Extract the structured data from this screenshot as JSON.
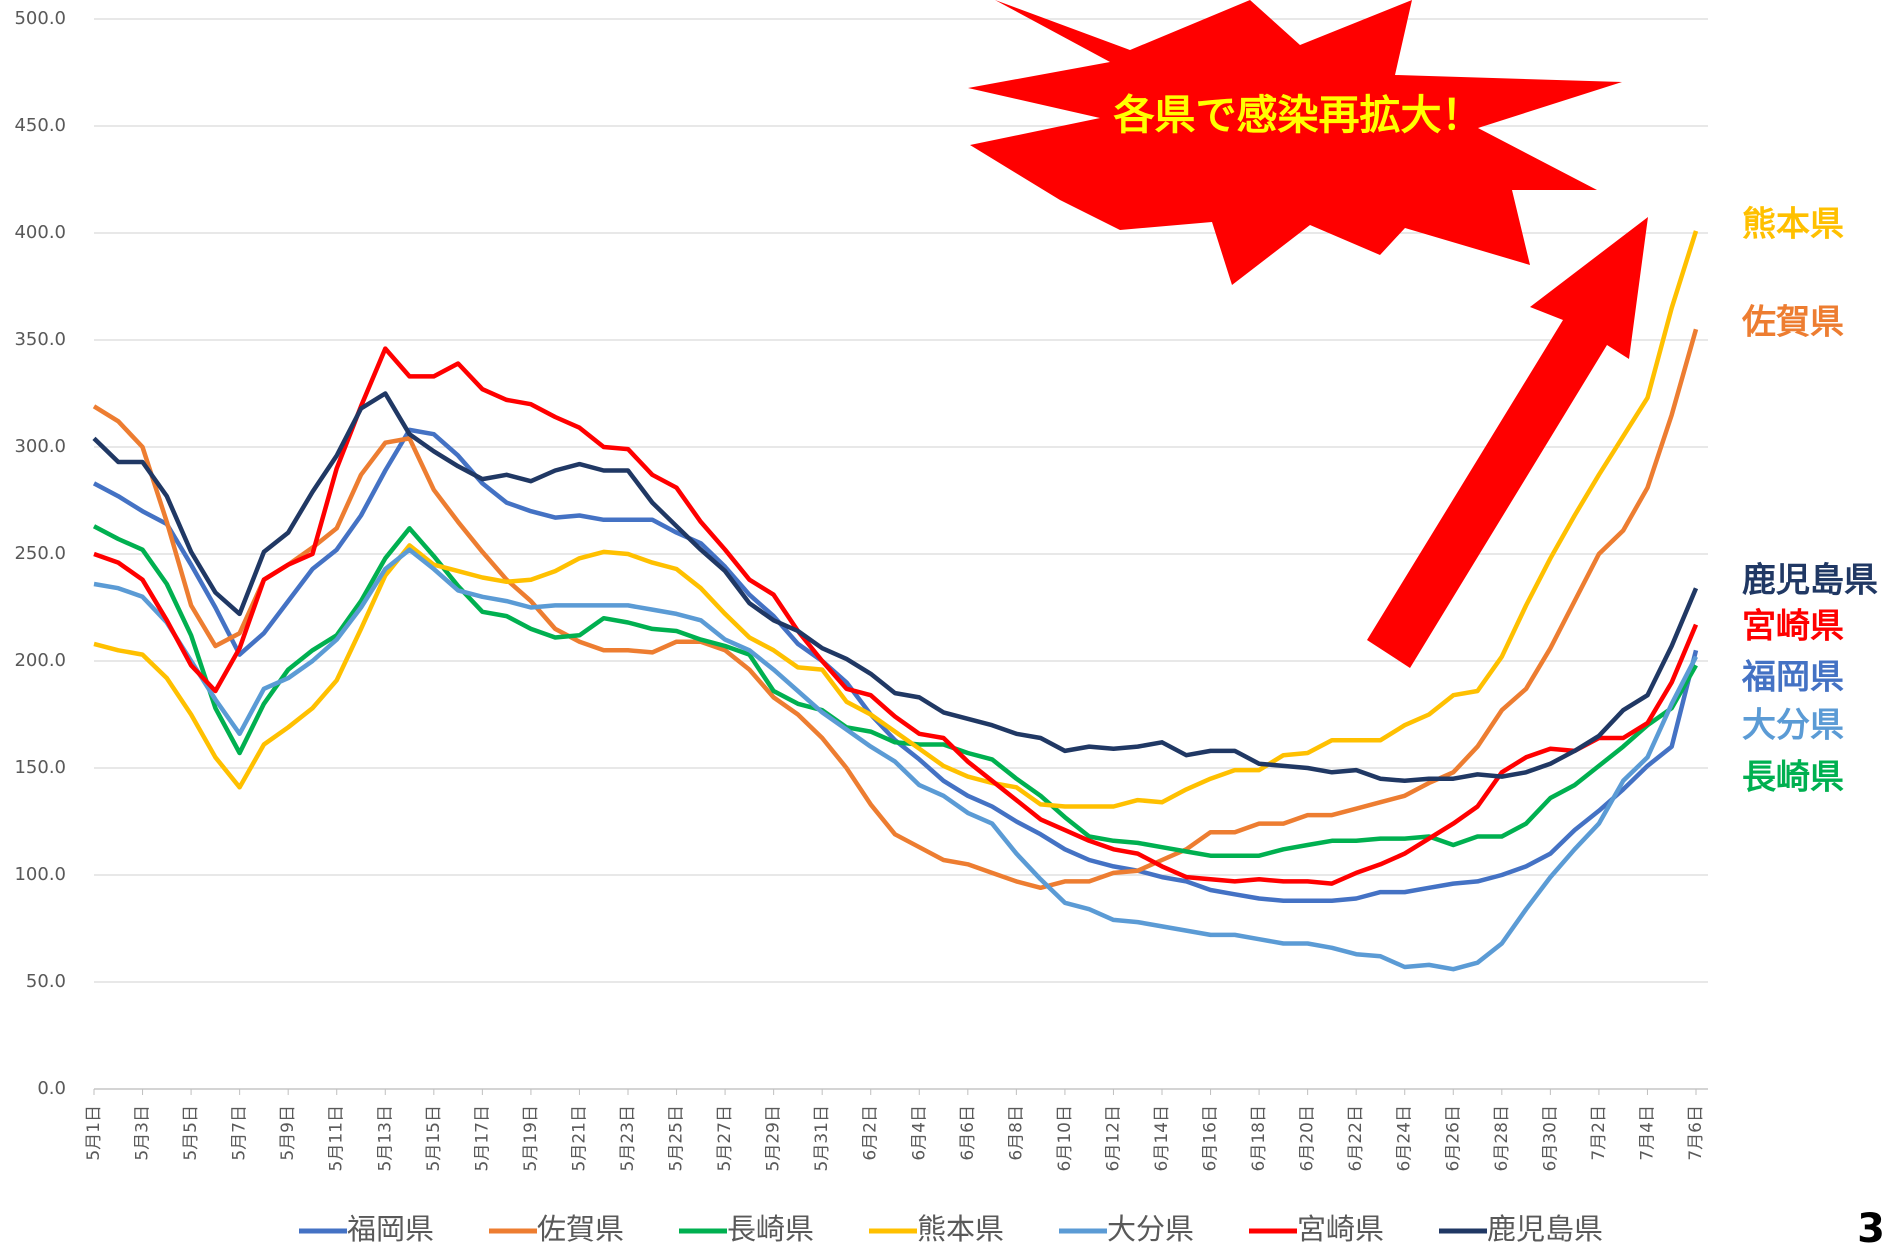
{
  "chart_data": {
    "type": "line",
    "annotation": "各県で感染再拡大！",
    "categories": [
      "5月1日",
      null,
      "5月3日",
      null,
      "5月5日",
      null,
      "5月7日",
      null,
      "5月9日",
      null,
      "5月11日",
      null,
      "5月13日",
      null,
      "5月15日",
      null,
      "5月17日",
      null,
      "5月19日",
      null,
      "5月21日",
      null,
      "5月23日",
      null,
      "5月25日",
      null,
      "5月27日",
      null,
      "5月29日",
      null,
      "5月31日",
      null,
      "6月2日",
      null,
      "6月4日",
      null,
      "6月6日",
      null,
      "6月8日",
      null,
      "6月10日",
      null,
      "6月12日",
      null,
      "6月14日",
      null,
      "6月16日",
      null,
      "6月18日",
      null,
      "6月20日",
      null,
      "6月22日",
      null,
      "6月24日",
      null,
      "6月26日",
      null,
      "6月28日",
      null,
      "6月30日",
      null,
      "7月2日",
      null,
      "7月4日",
      null,
      "7月6日"
    ],
    "series": [
      {
        "name": "福岡県",
        "color": "#4472c4",
        "values": [
          283,
          277,
          270,
          264,
          245,
          225,
          203,
          213,
          228,
          243,
          252,
          268,
          289,
          308,
          306,
          296,
          283,
          274,
          270,
          267,
          268,
          266,
          266,
          266,
          260,
          255,
          244,
          231,
          221,
          208,
          200,
          190,
          175,
          163,
          154,
          144,
          137,
          132,
          125,
          119,
          112,
          107,
          104,
          102,
          99,
          97,
          93,
          91,
          89,
          88,
          88,
          88,
          89,
          92,
          92,
          94,
          96,
          97,
          100,
          104,
          110,
          121,
          130,
          140,
          151,
          160,
          205
        ]
      },
      {
        "name": "佐賀県",
        "color": "#ed7d31",
        "values": [
          319,
          312,
          300,
          265,
          226,
          207,
          213,
          238,
          245,
          253,
          262,
          287,
          302,
          304,
          280,
          265,
          251,
          238,
          228,
          215,
          209,
          205,
          205,
          204,
          209,
          209,
          205,
          196,
          183,
          175,
          164,
          150,
          133,
          119,
          113,
          107,
          105,
          101,
          97,
          94,
          97,
          97,
          101,
          102,
          107,
          112,
          120,
          120,
          124,
          124,
          128,
          128,
          131,
          134,
          137,
          143,
          148,
          160,
          177,
          187,
          206,
          228,
          250,
          261,
          281,
          315,
          355
        ]
      },
      {
        "name": "長崎県",
        "color": "#00b050",
        "values": [
          263,
          257,
          252,
          236,
          212,
          178,
          157,
          180,
          196,
          205,
          212,
          228,
          248,
          262,
          249,
          235,
          223,
          221,
          215,
          211,
          212,
          220,
          218,
          215,
          214,
          210,
          207,
          203,
          186,
          180,
          177,
          169,
          167,
          162,
          161,
          161,
          157,
          154,
          145,
          137,
          127,
          118,
          116,
          115,
          113,
          111,
          109,
          109,
          109,
          112,
          114,
          116,
          116,
          117,
          117,
          118,
          114,
          118,
          118,
          124,
          136,
          142,
          151,
          160,
          170,
          178,
          198
        ]
      },
      {
        "name": "熊本県",
        "color": "#ffc000",
        "values": [
          208,
          205,
          203,
          192,
          175,
          155,
          141,
          161,
          169,
          178,
          191,
          215,
          240,
          254,
          245,
          242,
          239,
          237,
          238,
          242,
          248,
          251,
          250,
          246,
          243,
          234,
          222,
          211,
          205,
          197,
          196,
          181,
          175,
          167,
          159,
          151,
          146,
          143,
          141,
          133,
          132,
          132,
          132,
          135,
          134,
          140,
          145,
          149,
          149,
          156,
          157,
          163,
          163,
          163,
          170,
          175,
          184,
          186,
          202,
          226,
          248,
          268,
          287,
          305,
          323,
          365,
          401
        ]
      },
      {
        "name": "大分県",
        "color": "#5b9bd5",
        "values": [
          236,
          234,
          230,
          218,
          200,
          182,
          166,
          187,
          192,
          200,
          210,
          225,
          243,
          252,
          243,
          233,
          230,
          228,
          225,
          226,
          226,
          226,
          226,
          224,
          222,
          219,
          210,
          205,
          196,
          186,
          176,
          168,
          160,
          153,
          142,
          137,
          129,
          124,
          110,
          98,
          87,
          84,
          79,
          78,
          76,
          74,
          72,
          72,
          70,
          68,
          68,
          66,
          63,
          62,
          57,
          58,
          56,
          59,
          68,
          84,
          99,
          112,
          124,
          144,
          155,
          180,
          202
        ]
      },
      {
        "name": "宮崎県",
        "color": "#ff0000",
        "values": [
          250,
          246,
          238,
          219,
          198,
          186,
          206,
          238,
          245,
          250,
          290,
          319,
          346,
          333,
          333,
          339,
          327,
          322,
          320,
          314,
          309,
          300,
          299,
          287,
          281,
          265,
          252,
          238,
          231,
          214,
          200,
          187,
          184,
          174,
          166,
          164,
          153,
          144,
          135,
          126,
          121,
          116,
          112,
          110,
          104,
          99,
          98,
          97,
          98,
          97,
          97,
          96,
          101,
          105,
          110,
          117,
          124,
          132,
          148,
          155,
          159,
          158,
          164,
          164,
          171,
          190,
          217
        ]
      },
      {
        "name": "鹿児島県",
        "color": "#203864",
        "values": [
          304,
          293,
          293,
          277,
          251,
          232,
          222,
          251,
          260,
          279,
          296,
          318,
          325,
          306,
          298,
          291,
          285,
          287,
          284,
          289,
          292,
          289,
          289,
          274,
          263,
          252,
          242,
          227,
          219,
          214,
          206,
          201,
          194,
          185,
          183,
          176,
          173,
          170,
          166,
          164,
          158,
          160,
          159,
          160,
          162,
          156,
          158,
          158,
          152,
          151,
          150,
          148,
          149,
          145,
          144,
          145,
          145,
          147,
          146,
          148,
          152,
          158,
          165,
          177,
          184,
          207,
          234
        ]
      }
    ],
    "ylim": [
      0,
      500
    ],
    "yticks": [
      {
        "value": 0,
        "label": "0.0"
      },
      {
        "value": 50,
        "label": "50.0"
      },
      {
        "value": 100,
        "label": "100.0"
      },
      {
        "value": 150,
        "label": "150.0"
      },
      {
        "value": 200,
        "label": "200.0"
      },
      {
        "value": 250,
        "label": "250.0"
      },
      {
        "value": 300,
        "label": "300.0"
      },
      {
        "value": 350,
        "label": "350.0"
      },
      {
        "value": 400,
        "label": "400.0"
      },
      {
        "value": 450,
        "label": "450.0"
      },
      {
        "value": 500,
        "label": "500.0"
      }
    ],
    "grid": true,
    "legend": "bottom"
  },
  "page_number": "3"
}
